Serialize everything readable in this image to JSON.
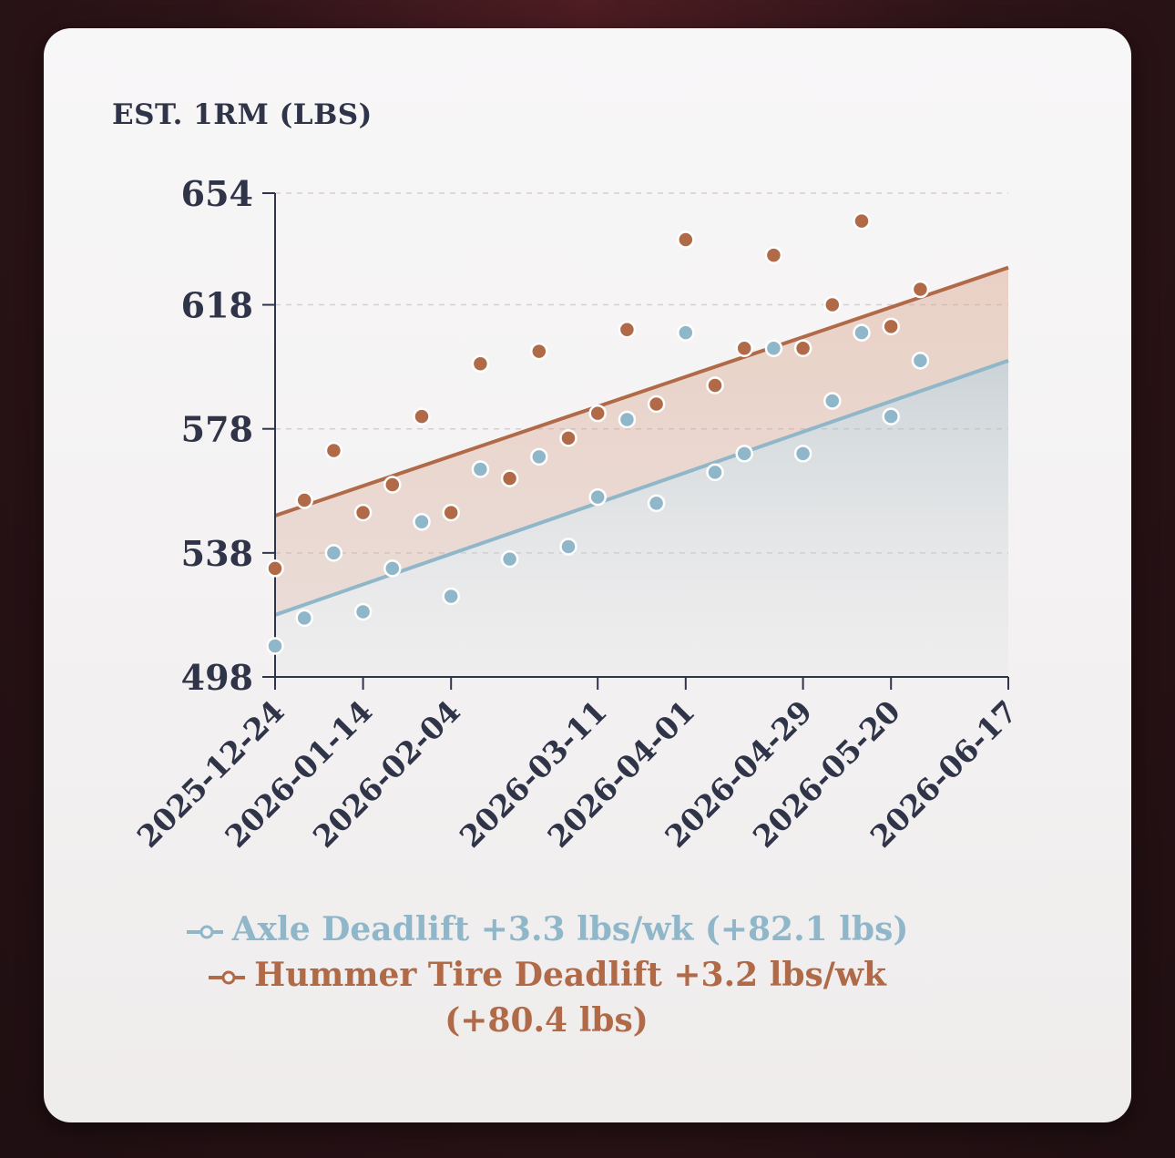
{
  "chart_data": {
    "type": "scatter",
    "ylabel": "EST. 1RM (LBS)",
    "ylim": [
      498,
      654
    ],
    "yticks": [
      498,
      538,
      578,
      618,
      654
    ],
    "xlim": [
      "2025-12-24",
      "2026-06-17"
    ],
    "xticks": [
      "2025-12-24",
      "2026-01-14",
      "2026-02-04",
      "2026-03-11",
      "2026-04-01",
      "2026-04-29",
      "2026-05-20",
      "2026-06-17"
    ],
    "grid": "horizontal dashed",
    "legend_position": "bottom",
    "series": [
      {
        "name": "Axle Deadlift +3.3 lbs/wk (+82.1 lbs)",
        "color": "#8fb7c9",
        "points": [
          [
            "2025-12-24",
            508
          ],
          [
            "2025-12-31",
            517
          ],
          [
            "2026-01-07",
            538
          ],
          [
            "2026-01-14",
            519
          ],
          [
            "2026-01-21",
            533
          ],
          [
            "2026-01-28",
            548
          ],
          [
            "2026-02-04",
            524
          ],
          [
            "2026-02-11",
            565
          ],
          [
            "2026-02-18",
            536
          ],
          [
            "2026-02-25",
            569
          ],
          [
            "2026-03-04",
            540
          ],
          [
            "2026-03-11",
            556
          ],
          [
            "2026-03-18",
            581
          ],
          [
            "2026-03-25",
            554
          ],
          [
            "2026-04-01",
            609
          ],
          [
            "2026-04-08",
            564
          ],
          [
            "2026-04-15",
            570
          ],
          [
            "2026-04-22",
            604
          ],
          [
            "2026-04-29",
            570
          ],
          [
            "2026-05-06",
            587
          ],
          [
            "2026-05-13",
            609
          ],
          [
            "2026-05-20",
            582
          ],
          [
            "2026-05-27",
            600
          ]
        ],
        "trend": [
          [
            "2025-12-24",
            518
          ],
          [
            "2026-06-17",
            600
          ]
        ]
      },
      {
        "name": "Hummer Tire Deadlift +3.2 lbs/wk (+80.4 lbs)",
        "color": "#b06a48",
        "points": [
          [
            "2025-12-24",
            533
          ],
          [
            "2025-12-31",
            555
          ],
          [
            "2026-01-07",
            571
          ],
          [
            "2026-01-14",
            551
          ],
          [
            "2026-01-21",
            560
          ],
          [
            "2026-01-28",
            582
          ],
          [
            "2026-02-04",
            551
          ],
          [
            "2026-02-11",
            599
          ],
          [
            "2026-02-18",
            562
          ],
          [
            "2026-02-25",
            603
          ],
          [
            "2026-03-04",
            575
          ],
          [
            "2026-03-11",
            583
          ],
          [
            "2026-03-18",
            610
          ],
          [
            "2026-03-25",
            586
          ],
          [
            "2026-04-01",
            639
          ],
          [
            "2026-04-08",
            592
          ],
          [
            "2026-04-15",
            604
          ],
          [
            "2026-04-22",
            634
          ],
          [
            "2026-04-29",
            604
          ],
          [
            "2026-05-06",
            618
          ],
          [
            "2026-05-13",
            645
          ],
          [
            "2026-05-20",
            611
          ],
          [
            "2026-05-27",
            623
          ]
        ],
        "trend": [
          [
            "2025-12-24",
            550
          ],
          [
            "2026-06-17",
            630
          ]
        ]
      }
    ]
  }
}
